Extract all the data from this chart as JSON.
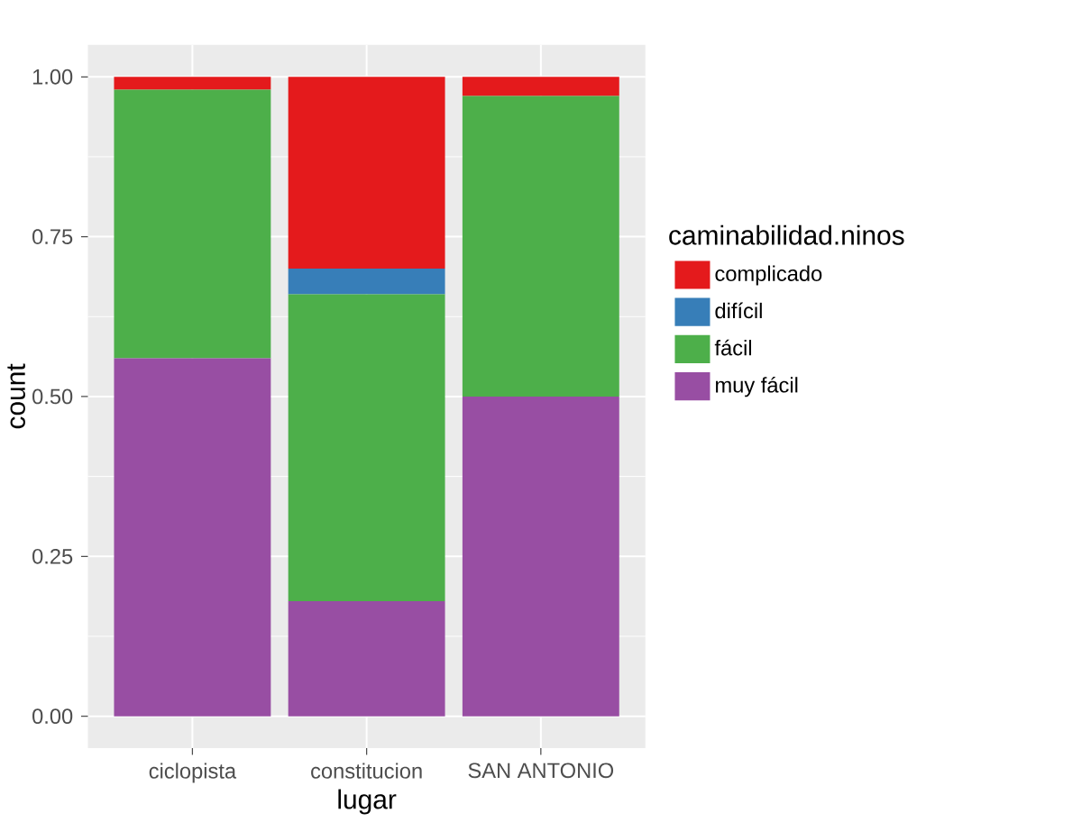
{
  "chart_data": {
    "type": "bar",
    "stacked": true,
    "xlabel": "lugar",
    "ylabel": "count",
    "legend_title": "caminabilidad.ninos",
    "categories": [
      "ciclopista",
      "constitucion",
      "SAN ANTONIO"
    ],
    "series": [
      {
        "name": "muy fácil",
        "color": "#984ea3",
        "values": [
          0.56,
          0.18,
          0.5
        ]
      },
      {
        "name": "fácil",
        "color": "#4daf4a",
        "values": [
          0.42,
          0.48,
          0.47
        ]
      },
      {
        "name": "difícil",
        "color": "#377eb8",
        "values": [
          0,
          0.04,
          0
        ]
      },
      {
        "name": "complicado",
        "color": "#e41a1c",
        "values": [
          0.02,
          0.3,
          0.03
        ]
      }
    ],
    "ylim": [
      -0.05,
      1.05
    ],
    "yticks": [
      {
        "value": 0,
        "label": "0.00"
      },
      {
        "value": 0.25,
        "label": "0.25"
      },
      {
        "value": 0.5,
        "label": "0.50"
      },
      {
        "value": 0.75,
        "label": "0.75"
      },
      {
        "value": 1,
        "label": "1.00"
      }
    ],
    "grid": true,
    "legend": "right"
  }
}
